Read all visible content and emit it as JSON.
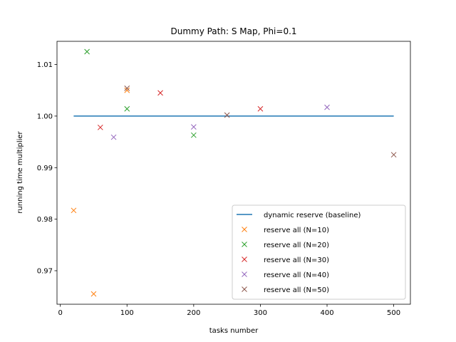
{
  "chart_data": {
    "type": "scatter",
    "title": "Dummy Path: S Map, Phi=0.1",
    "xlabel": "tasks number",
    "ylabel": "running time multiplier",
    "xlim": [
      -5,
      525
    ],
    "ylim": [
      0.9635,
      1.0145
    ],
    "xticks": [
      0,
      100,
      200,
      300,
      400,
      500
    ],
    "xtick_labels": [
      "0",
      "100",
      "200",
      "300",
      "400",
      "500"
    ],
    "yticks": [
      0.97,
      0.98,
      0.99,
      1.0,
      1.01
    ],
    "ytick_labels": [
      "0.97",
      "0.98",
      "0.99",
      "1.00",
      "1.01"
    ],
    "grid": false,
    "legend_position": "lower-right",
    "baseline": {
      "name": "dynamic reserve (baseline)",
      "color": "#1f77b4",
      "x": [
        20,
        500
      ],
      "y": [
        1.0,
        1.0
      ]
    },
    "series": [
      {
        "name": "reserve all (N=10)",
        "color": "#ff7f0e",
        "marker": "x",
        "points": [
          [
            20,
            0.9817
          ],
          [
            50,
            0.9655
          ],
          [
            100,
            1.005
          ]
        ]
      },
      {
        "name": "reserve all (N=20)",
        "color": "#2ca02c",
        "marker": "x",
        "points": [
          [
            40,
            1.0125
          ],
          [
            100,
            1.0014
          ],
          [
            200,
            0.9963
          ]
        ]
      },
      {
        "name": "reserve all (N=30)",
        "color": "#d62728",
        "marker": "x",
        "points": [
          [
            60,
            0.9978
          ],
          [
            150,
            1.0045
          ],
          [
            300,
            1.0014
          ]
        ]
      },
      {
        "name": "reserve all (N=40)",
        "color": "#9467bd",
        "marker": "x",
        "points": [
          [
            80,
            0.9959
          ],
          [
            200,
            0.9979
          ],
          [
            400,
            1.0017
          ]
        ]
      },
      {
        "name": "reserve all (N=50)",
        "color": "#8c564b",
        "marker": "x",
        "points": [
          [
            100,
            1.0054
          ],
          [
            250,
            1.0002
          ],
          [
            500,
            0.9925
          ]
        ]
      }
    ]
  }
}
